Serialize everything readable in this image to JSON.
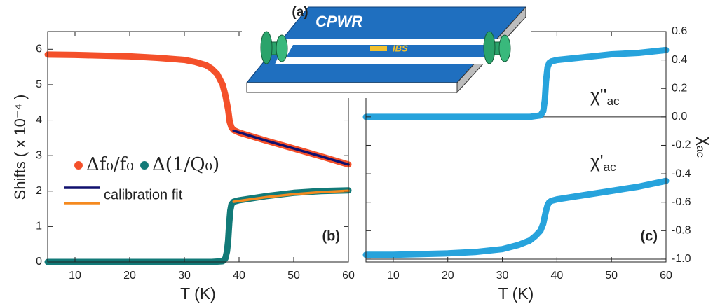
{
  "chart_data": [
    {
      "type": "line",
      "panel_label": "(b)",
      "xlabel": "T  (K)",
      "ylabel": "Shifts ( x 10⁻⁴ )",
      "xlim": [
        5,
        60
      ],
      "xticks": [
        10,
        20,
        30,
        40,
        50,
        60
      ],
      "ylim": [
        0,
        6.5
      ],
      "yticks": [
        0,
        1,
        2,
        3,
        4,
        5,
        6
      ],
      "yaxis_side": "left",
      "series": [
        {
          "name": "Δf₀/f₀",
          "color": "#f4502a",
          "x": [
            5,
            10,
            15,
            20,
            25,
            30,
            32,
            34,
            35,
            36,
            37,
            37.5,
            38,
            38.3,
            38.6,
            39,
            40,
            45,
            50,
            55,
            60
          ],
          "values": [
            5.85,
            5.84,
            5.82,
            5.8,
            5.76,
            5.7,
            5.64,
            5.55,
            5.45,
            5.3,
            5.0,
            4.7,
            4.3,
            3.95,
            3.8,
            3.72,
            3.65,
            3.42,
            3.2,
            2.98,
            2.75
          ]
        },
        {
          "name": "Δ(1/Q₀)",
          "color": "#127a78",
          "x": [
            5,
            10,
            20,
            30,
            35,
            37,
            37.5,
            37.8,
            38,
            38.2,
            38.4,
            38.6,
            39,
            40,
            45,
            50,
            55,
            60
          ],
          "values": [
            0,
            0,
            0,
            0,
            0,
            0.02,
            0.1,
            0.3,
            0.6,
            1.1,
            1.45,
            1.62,
            1.7,
            1.74,
            1.86,
            1.95,
            2.0,
            2.02
          ]
        }
      ],
      "fits": {
        "name": "calibration fit",
        "series": [
          {
            "color": "#10106e",
            "x": [
              39,
              45,
              50,
              55,
              60
            ],
            "values": [
              3.7,
              3.42,
              3.2,
              2.98,
              2.75
            ]
          },
          {
            "color": "#f58a1f",
            "x": [
              39,
              45,
              50,
              55,
              60
            ],
            "values": [
              1.7,
              1.83,
              1.91,
              1.97,
              2.01
            ]
          }
        ]
      }
    },
    {
      "type": "line",
      "panel_label": "(c)",
      "xlabel": "T  (K)",
      "ylabel": "χ",
      "ylabel_sub": "ac",
      "xlim": [
        5,
        60
      ],
      "xticks": [
        10,
        20,
        30,
        40,
        50,
        60
      ],
      "ylim": [
        -1.02,
        0.6
      ],
      "yticks": [
        0.6,
        0.4,
        0.2,
        {
          "value": 0,
          "label": "0.0"
        },
        -0.2,
        -0.4,
        -0.6,
        -0.8,
        {
          "value": -1,
          "label": "-1.0"
        }
      ],
      "yaxis_side": "right",
      "hlines": [
        0,
        -1
      ],
      "series": [
        {
          "name": "χ''",
          "name_sub": "ac",
          "color": "#27a3dc",
          "x": [
            5,
            10,
            20,
            30,
            35,
            37,
            37.5,
            37.8,
            38,
            38.3,
            38.6,
            39,
            40,
            45,
            50,
            55,
            60
          ],
          "values": [
            0,
            0,
            0,
            0,
            0,
            0.01,
            0.04,
            0.12,
            0.25,
            0.35,
            0.38,
            0.39,
            0.4,
            0.42,
            0.44,
            0.45,
            0.47
          ]
        },
        {
          "name": "χ'",
          "name_sub": "ac",
          "color": "#27a3dc",
          "x": [
            5,
            10,
            20,
            25,
            30,
            33,
            35,
            36,
            37,
            37.5,
            38,
            38.3,
            38.6,
            39,
            40,
            45,
            50,
            55,
            60
          ],
          "values": [
            -0.97,
            -0.97,
            -0.96,
            -0.95,
            -0.93,
            -0.9,
            -0.87,
            -0.84,
            -0.8,
            -0.75,
            -0.66,
            -0.62,
            -0.6,
            -0.59,
            -0.58,
            -0.55,
            -0.52,
            -0.49,
            -0.45
          ]
        }
      ]
    }
  ],
  "inset": {
    "label": "(a)",
    "title": "CPWR",
    "sample": "IBS"
  }
}
